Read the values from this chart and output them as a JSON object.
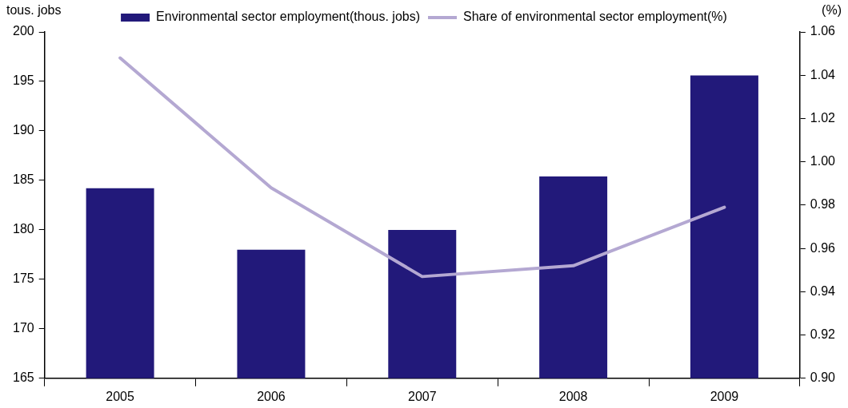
{
  "chart_data": {
    "type": "bar",
    "categories": [
      "2005",
      "2006",
      "2007",
      "2008",
      "2009"
    ],
    "series": [
      {
        "name": "Environmental sector employment(thous. jobs)",
        "color": "#22197a",
        "values": [
          184.2,
          178.0,
          180.0,
          185.4,
          195.6
        ]
      },
      {
        "name": "Share of environmental sector employment(%)",
        "type": "line",
        "axis": "y2",
        "color": "#b4a8d2",
        "values": [
          1.048,
          0.988,
          0.947,
          0.952,
          0.979
        ]
      }
    ],
    "ylabel": "tous. jobs",
    "y2label": "(%)",
    "ylim": [
      165,
      200
    ],
    "yticks": [
      165,
      170,
      175,
      180,
      185,
      190,
      195,
      200
    ],
    "y2lim": [
      0.9,
      1.06
    ],
    "y2ticks": [
      {
        "value": 0.9,
        "label": "0.90"
      },
      {
        "value": 0.92,
        "label": "0.92"
      },
      {
        "value": 0.94,
        "label": "0.94"
      },
      {
        "value": 0.96,
        "label": "0.96"
      },
      {
        "value": 0.98,
        "label": "0.98"
      },
      {
        "value": 1.0,
        "label": "1.00"
      },
      {
        "value": 1.02,
        "label": "1.02"
      },
      {
        "value": 1.04,
        "label": "1.04"
      },
      {
        "value": 1.06,
        "label": "1.06"
      }
    ],
    "legend": "top",
    "grid": false,
    "marker": "none",
    "line_style": "solid"
  }
}
